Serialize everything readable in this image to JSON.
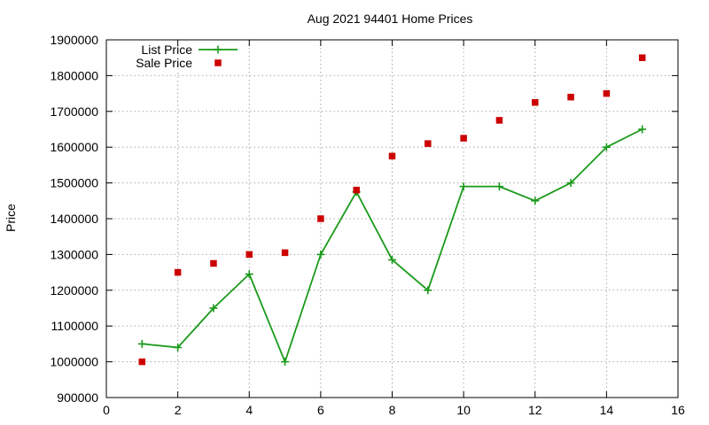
{
  "chart_data": {
    "type": "line",
    "title": "Aug 2021 94401 Home Prices",
    "xlabel": "",
    "ylabel": "Price",
    "xlim": [
      0,
      16
    ],
    "ylim": [
      900000,
      1900000
    ],
    "xticks": [
      0,
      2,
      4,
      6,
      8,
      10,
      12,
      14,
      16
    ],
    "yticks": [
      900000,
      1000000,
      1100000,
      1200000,
      1300000,
      1400000,
      1500000,
      1600000,
      1700000,
      1800000,
      1900000
    ],
    "grid": true,
    "legend_position": "top-left",
    "series": [
      {
        "name": "List Price",
        "style": "line-with-plus-markers",
        "color": "#1a9a1a",
        "x": [
          1,
          2,
          3,
          4,
          5,
          6,
          7,
          8,
          9,
          10,
          11,
          12,
          13,
          14,
          15
        ],
        "values": [
          1050000,
          1040000,
          1150000,
          1245000,
          1000000,
          1300000,
          1475000,
          1285000,
          1200000,
          1490000,
          1490000,
          1450000,
          1500000,
          1600000,
          1650000
        ]
      },
      {
        "name": "Sale Price",
        "style": "square-markers",
        "color": "#cc0000",
        "x": [
          1,
          2,
          3,
          4,
          5,
          6,
          7,
          8,
          9,
          10,
          11,
          12,
          13,
          14,
          15
        ],
        "values": [
          1000000,
          1250000,
          1275000,
          1300000,
          1305000,
          1400000,
          1480000,
          1575000,
          1610000,
          1625000,
          1675000,
          1725000,
          1740000,
          1750000,
          1850000
        ]
      }
    ]
  }
}
